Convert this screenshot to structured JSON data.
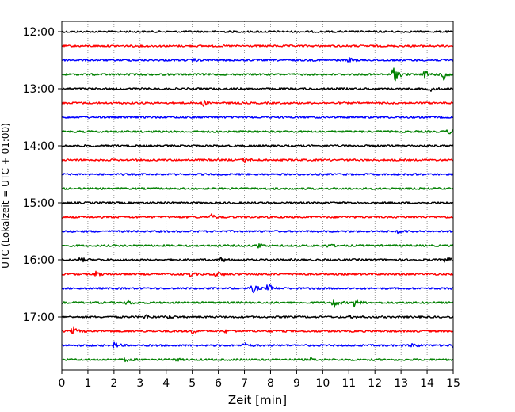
{
  "chart_data": {
    "type": "line",
    "title": "",
    "xlabel": "Zeit  [min]",
    "ylabel": "UTC (Lokalzeit = UTC + 01:00)",
    "xlim": [
      0,
      15
    ],
    "x_ticks": [
      0,
      1,
      2,
      3,
      4,
      5,
      6,
      7,
      8,
      9,
      10,
      11,
      12,
      13,
      14,
      15
    ],
    "x_tick_labels": [
      "0",
      "1",
      "2",
      "3",
      "4",
      "5",
      "6",
      "7",
      "8",
      "9",
      "10",
      "11",
      "12",
      "13",
      "14",
      "15"
    ],
    "y_ticks": [
      "12:00",
      "13:00",
      "14:00",
      "15:00",
      "16:00",
      "17:00"
    ],
    "x_grid": true,
    "trace_interval_minutes": 15,
    "trace_colors": [
      "#000000",
      "#ff0000",
      "#0000ff",
      "#008000"
    ],
    "traces": [
      {
        "start": "12:00",
        "color": "#000000",
        "events": []
      },
      {
        "start": "12:15",
        "color": "#ff0000",
        "events": []
      },
      {
        "start": "12:30",
        "color": "#0000ff",
        "events": [
          {
            "t": 5.0,
            "amp": 2
          },
          {
            "t": 11.0,
            "amp": 3
          }
        ]
      },
      {
        "start": "12:45",
        "color": "#008000",
        "events": [
          {
            "t": 12.7,
            "amp": 12
          },
          {
            "t": 13.9,
            "amp": 6
          },
          {
            "t": 14.6,
            "amp": 10
          }
        ]
      },
      {
        "start": "13:00",
        "color": "#000000",
        "events": [
          {
            "t": 14.1,
            "amp": 3
          }
        ]
      },
      {
        "start": "13:15",
        "color": "#ff0000",
        "events": [
          {
            "t": 5.4,
            "amp": 4
          }
        ]
      },
      {
        "start": "13:30",
        "color": "#0000ff",
        "events": []
      },
      {
        "start": "13:45",
        "color": "#008000",
        "events": [
          {
            "t": 14.8,
            "amp": 3
          }
        ]
      },
      {
        "start": "14:00",
        "color": "#000000",
        "events": []
      },
      {
        "start": "14:15",
        "color": "#ff0000",
        "events": [
          {
            "t": 7.0,
            "amp": 3
          }
        ]
      },
      {
        "start": "14:30",
        "color": "#0000ff",
        "events": []
      },
      {
        "start": "14:45",
        "color": "#008000",
        "events": []
      },
      {
        "start": "15:00",
        "color": "#000000",
        "events": []
      },
      {
        "start": "15:15",
        "color": "#ff0000",
        "events": [
          {
            "t": 5.7,
            "amp": 4
          }
        ]
      },
      {
        "start": "15:30",
        "color": "#0000ff",
        "events": [
          {
            "t": 12.9,
            "amp": 3
          }
        ]
      },
      {
        "start": "15:45",
        "color": "#008000",
        "events": [
          {
            "t": 7.5,
            "amp": 4
          },
          {
            "t": 10.2,
            "amp": 2
          }
        ]
      },
      {
        "start": "16:00",
        "color": "#000000",
        "events": [
          {
            "t": 0.7,
            "amp": 3
          },
          {
            "t": 6.1,
            "amp": 3
          },
          {
            "t": 14.7,
            "amp": 4
          }
        ]
      },
      {
        "start": "16:15",
        "color": "#ff0000",
        "events": [
          {
            "t": 1.3,
            "amp": 3
          },
          {
            "t": 4.9,
            "amp": 3
          },
          {
            "t": 5.9,
            "amp": 5
          },
          {
            "t": 8.9,
            "amp": 2
          }
        ]
      },
      {
        "start": "16:30",
        "color": "#0000ff",
        "events": [
          {
            "t": 7.3,
            "amp": 6
          },
          {
            "t": 7.9,
            "amp": 6
          }
        ]
      },
      {
        "start": "16:45",
        "color": "#008000",
        "events": [
          {
            "t": 2.5,
            "amp": 3
          },
          {
            "t": 10.4,
            "amp": 7
          },
          {
            "t": 11.2,
            "amp": 5
          }
        ]
      },
      {
        "start": "17:00",
        "color": "#000000",
        "events": [
          {
            "t": 3.2,
            "amp": 3
          },
          {
            "t": 4.0,
            "amp": 3
          },
          {
            "t": 11.1,
            "amp": 2
          }
        ]
      },
      {
        "start": "17:15",
        "color": "#ff0000",
        "events": [
          {
            "t": 0.4,
            "amp": 6
          },
          {
            "t": 5.0,
            "amp": 3
          },
          {
            "t": 6.3,
            "amp": 2
          }
        ]
      },
      {
        "start": "17:30",
        "color": "#0000ff",
        "events": [
          {
            "t": 2.0,
            "amp": 4
          },
          {
            "t": 7.0,
            "amp": 3
          },
          {
            "t": 13.4,
            "amp": 3
          },
          {
            "t": 14.9,
            "amp": 3
          }
        ]
      },
      {
        "start": "17:45",
        "color": "#008000",
        "events": [
          {
            "t": 2.4,
            "amp": 3
          },
          {
            "t": 4.3,
            "amp": 2
          },
          {
            "t": 9.5,
            "amp": 2
          }
        ]
      }
    ]
  }
}
